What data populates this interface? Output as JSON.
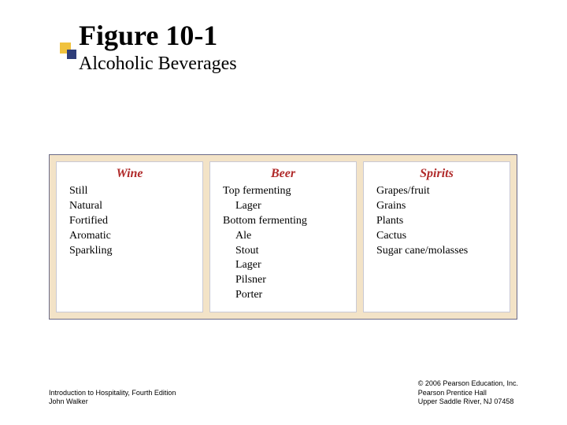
{
  "bullet": {
    "yellow": "#f0c23e",
    "blue": "#2f3e7a"
  },
  "heading": {
    "title": "Figure 10-1",
    "subtitle": "Alcoholic Beverages"
  },
  "chart": {
    "type": "table",
    "background_color": "#f3e3c7",
    "border_color": "#6a6a88",
    "cell_bg": "#ffffff",
    "header_color": "#b02a2a",
    "header_font": "serif-italic-bold",
    "item_font": "serif",
    "item_fontsize": 14,
    "columns": [
      {
        "header": "Wine",
        "items": [
          {
            "label": "Still",
            "indent": 0
          },
          {
            "label": "Natural",
            "indent": 0
          },
          {
            "label": "Fortified",
            "indent": 0
          },
          {
            "label": "Aromatic",
            "indent": 0
          },
          {
            "label": "Sparkling",
            "indent": 0
          }
        ]
      },
      {
        "header": "Beer",
        "items": [
          {
            "label": "Top fermenting",
            "indent": 0
          },
          {
            "label": "Lager",
            "indent": 1
          },
          {
            "label": "Bottom fermenting",
            "indent": 0
          },
          {
            "label": "Ale",
            "indent": 1
          },
          {
            "label": "Stout",
            "indent": 1
          },
          {
            "label": "Lager",
            "indent": 1
          },
          {
            "label": "Pilsner",
            "indent": 1
          },
          {
            "label": "Porter",
            "indent": 1
          }
        ]
      },
      {
        "header": "Spirits",
        "items": [
          {
            "label": "Grapes/fruit",
            "indent": 0
          },
          {
            "label": "Grains",
            "indent": 0
          },
          {
            "label": "Plants",
            "indent": 0
          },
          {
            "label": "Cactus",
            "indent": 0
          },
          {
            "label": "Sugar cane/molasses",
            "indent": 0
          }
        ]
      }
    ]
  },
  "footer": {
    "left_line1": "Introduction to Hospitality, Fourth Edition",
    "left_line2": "John Walker",
    "right_line1": "© 2006 Pearson Education, Inc.",
    "right_line2": "Pearson Prentice Hall",
    "right_line3": "Upper Saddle River, NJ 07458"
  }
}
